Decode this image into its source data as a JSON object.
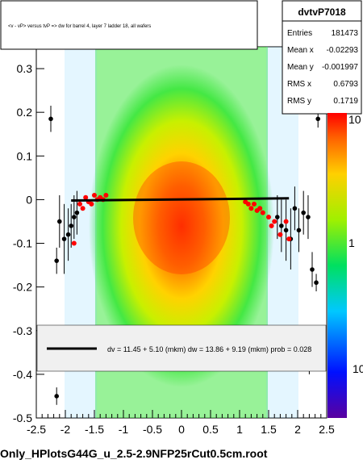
{
  "title_box": {
    "text": "<v - vP>       versus  tvP =>  dw for barrel 4, layer 7 ladder 18, all wafers"
  },
  "stats": {
    "name": "dvtvP7018",
    "rows": [
      {
        "label": "Entries",
        "value": "181473"
      },
      {
        "label": "Mean x",
        "value": "-0.02293"
      },
      {
        "label": "Mean y",
        "value": "-0.001997"
      },
      {
        "label": "RMS x",
        "value": "0.6793"
      },
      {
        "label": "RMS y",
        "value": "0.1719"
      }
    ]
  },
  "fit_legend": {
    "text": "dv =    11.45 +   5.10 (mkm) dw =    13.86 +   9.19 (mkm) prob = 0.028"
  },
  "footer": {
    "text": "Only_HPlotsG44G_u_2.5-2.9NFP25rCut0.5cm.root"
  },
  "colors": {
    "profile_points": "#ff0000",
    "fit_line": "#000000",
    "legend_bg": "#f0f0f0"
  },
  "chart_data": {
    "type": "heatmap",
    "xlim": [
      -2.5,
      2.5
    ],
    "ylim": [
      -0.5,
      0.35
    ],
    "x_ticks": [
      -2.5,
      -2,
      -1.5,
      -1,
      -0.5,
      0,
      0.5,
      1,
      1.5,
      2,
      2.5
    ],
    "x_tick_labels": [
      "-2.5",
      "-2",
      "-1.5",
      "-1",
      "-0.5",
      "0",
      "0.5",
      "1",
      "1.5",
      "2",
      "2.5"
    ],
    "y_ticks": [
      -0.5,
      -0.4,
      -0.3,
      -0.2,
      -0.1,
      0,
      0.1,
      0.2,
      0.3
    ],
    "y_tick_labels": [
      "-0.5",
      "-0.4",
      "-0.3",
      "-0.2",
      "-0.1",
      "0",
      "0.1",
      "0.2",
      "0.3"
    ],
    "z_scale": "log",
    "z_ticks": [
      1,
      10
    ],
    "z_tick_labels": [
      "1",
      "10"
    ],
    "z_lower_tick_label": "10",
    "profile_black": [
      {
        "x": -2.25,
        "y": 0.185,
        "err": 0.03
      },
      {
        "x": -2.15,
        "y": -0.14,
        "err": 0.03
      },
      {
        "x": -2.1,
        "y": -0.05,
        "err": 0.06
      },
      {
        "x": -2.02,
        "y": -0.09,
        "err": 0.08
      },
      {
        "x": -1.95,
        "y": -0.08,
        "err": 0.06
      },
      {
        "x": -1.9,
        "y": -0.06,
        "err": 0.05
      },
      {
        "x": -1.85,
        "y": -0.04,
        "err": 0.05
      },
      {
        "x": -1.8,
        "y": -0.03,
        "err": 0.05
      },
      {
        "x": 1.65,
        "y": -0.04,
        "err": 0.05
      },
      {
        "x": 1.72,
        "y": -0.06,
        "err": 0.06
      },
      {
        "x": 1.8,
        "y": -0.07,
        "err": 0.07
      },
      {
        "x": 1.88,
        "y": -0.09,
        "err": 0.07
      },
      {
        "x": 1.95,
        "y": -0.02,
        "err": 0.05
      },
      {
        "x": 2.02,
        "y": -0.07,
        "err": 0.05
      },
      {
        "x": 2.1,
        "y": -0.03,
        "err": 0.05
      },
      {
        "x": 2.18,
        "y": -0.04,
        "err": 0.05
      },
      {
        "x": 2.25,
        "y": -0.16,
        "err": 0.04
      },
      {
        "x": 2.32,
        "y": -0.19,
        "err": 0.02
      },
      {
        "x": 2.35,
        "y": 0.185,
        "err": 0.02
      },
      {
        "x": 2.2,
        "y": -0.38,
        "err": 0.02
      },
      {
        "x": -2.15,
        "y": -0.45,
        "err": 0.02
      }
    ],
    "profile_red": [
      {
        "x": -1.85,
        "y": -0.1
      },
      {
        "x": -1.75,
        "y": -0.01
      },
      {
        "x": -1.7,
        "y": -0.02
      },
      {
        "x": -1.65,
        "y": 0.005
      },
      {
        "x": -1.6,
        "y": -0.005
      },
      {
        "x": -1.55,
        "y": -0.01
      },
      {
        "x": -1.5,
        "y": 0.01
      },
      {
        "x": -1.45,
        "y": 0.0
      },
      {
        "x": -1.4,
        "y": 0.005
      },
      {
        "x": -1.35,
        "y": 0.0
      },
      {
        "x": -1.3,
        "y": 0.01
      },
      {
        "x": 1.1,
        "y": -0.005
      },
      {
        "x": 1.15,
        "y": -0.01
      },
      {
        "x": 1.2,
        "y": -0.02
      },
      {
        "x": 1.25,
        "y": -0.01
      },
      {
        "x": 1.3,
        "y": -0.025
      },
      {
        "x": 1.35,
        "y": -0.02
      },
      {
        "x": 1.4,
        "y": -0.03
      },
      {
        "x": 1.5,
        "y": -0.04
      },
      {
        "x": 1.55,
        "y": -0.06
      },
      {
        "x": 1.6,
        "y": -0.05
      },
      {
        "x": 1.7,
        "y": -0.08
      },
      {
        "x": 1.8,
        "y": -0.05
      },
      {
        "x": 1.85,
        "y": -0.09
      }
    ],
    "fit_line": {
      "x": [
        -1.9,
        1.85
      ],
      "y": [
        -0.002,
        0.003
      ]
    }
  }
}
